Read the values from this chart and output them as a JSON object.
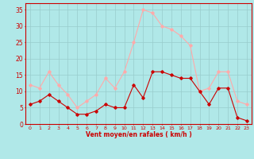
{
  "hours": [
    0,
    1,
    2,
    3,
    4,
    5,
    6,
    7,
    8,
    9,
    10,
    11,
    12,
    13,
    14,
    15,
    16,
    17,
    18,
    19,
    20,
    21,
    22,
    23
  ],
  "wind_avg": [
    6,
    7,
    9,
    7,
    5,
    3,
    3,
    4,
    6,
    5,
    5,
    12,
    8,
    16,
    16,
    15,
    14,
    14,
    10,
    6,
    11,
    11,
    2,
    1
  ],
  "wind_gust": [
    12,
    11,
    16,
    12,
    9,
    5,
    7,
    9,
    14,
    11,
    16,
    25,
    35,
    34,
    30,
    29,
    27,
    24,
    10,
    11,
    16,
    16,
    7,
    6
  ],
  "avg_color": "#cc0000",
  "gust_color": "#ffaaaa",
  "bg_color": "#b0e8e8",
  "grid_color": "#99cccc",
  "xlabel": "Vent moyen/en rafales ( km/h )",
  "xlabel_color": "#cc0000",
  "ylabel_color": "#cc0000",
  "yticks": [
    0,
    5,
    10,
    15,
    20,
    25,
    30,
    35
  ],
  "ylim": [
    0,
    37
  ],
  "xlim": [
    -0.5,
    23.5
  ]
}
